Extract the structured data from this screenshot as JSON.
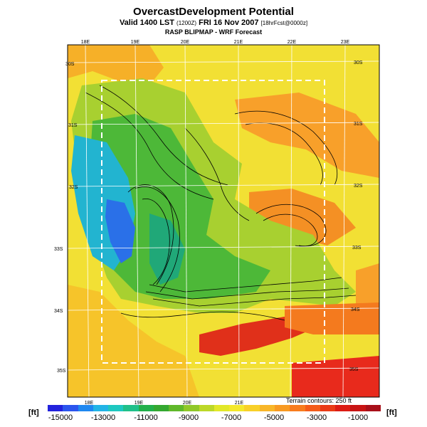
{
  "header": {
    "title": "OvercastDevelopment Potential",
    "valid_prefix": "Valid 1400 LST",
    "valid_code": "(1200Z)",
    "valid_date": "FRI 16 Nov 2007",
    "forecast_info": "[18hrFcst@0000z]",
    "model_line": "RASP BLIPMAP - WRF Forecast"
  },
  "map": {
    "lon_labels_top": [
      "18E",
      "19E",
      "20E",
      "21E",
      "22E",
      "23E"
    ],
    "lon_labels_bottom": [
      "18E",
      "19E",
      "20E",
      "21E"
    ],
    "lat_labels_right": [
      "30S",
      "31S",
      "32S",
      "33S",
      "34S",
      "35S"
    ],
    "lat_labels_left": [
      "30S",
      "31S",
      "32S",
      "33S",
      "34S",
      "35S"
    ],
    "terrain_note": "Terrain contours: 250 ft"
  },
  "colorbar": {
    "unit_left": "[ft]",
    "unit_right": "[ft]",
    "labels": [
      "-15000",
      "-13000",
      "-11000",
      "-9000",
      "-7000",
      "-5000",
      "-3000",
      "-1000"
    ],
    "colors": [
      "#2222dd",
      "#2b55ee",
      "#1f88f0",
      "#22b4e6",
      "#1ec8c0",
      "#20c08a",
      "#22b04a",
      "#34a830",
      "#60b82a",
      "#90c828",
      "#bcd828",
      "#e2e828",
      "#f4e82a",
      "#f8d028",
      "#f8b628",
      "#f89a22",
      "#f87c1e",
      "#f45c1a",
      "#ea3a16",
      "#dc1c14",
      "#c81414",
      "#a8101a"
    ]
  }
}
